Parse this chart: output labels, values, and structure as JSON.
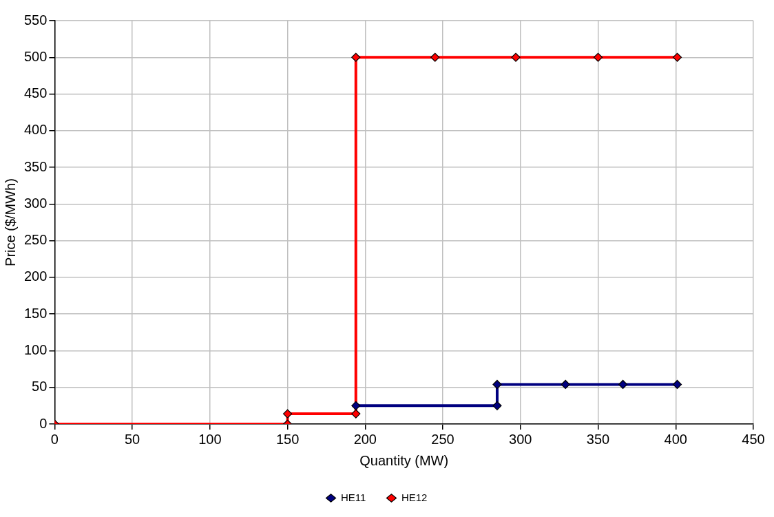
{
  "chart_data": {
    "type": "line",
    "xlabel": "Quantity (MW)",
    "ylabel": "Price ($/MWh)",
    "xlim": [
      0,
      450
    ],
    "xticks": [
      0,
      50,
      100,
      150,
      200,
      250,
      300,
      350,
      400,
      450
    ],
    "ylim": [
      0,
      550
    ],
    "yticks": [
      0,
      50,
      100,
      150,
      200,
      250,
      300,
      350,
      400,
      450,
      500,
      550
    ],
    "grid": true,
    "legend": "bottom",
    "marker": "diamond",
    "line_style": "solid",
    "series": [
      {
        "name": "HE11",
        "color": "#000080",
        "x": [
          194,
          285,
          285,
          329,
          366,
          401
        ],
        "values": [
          25,
          25,
          54,
          54,
          54,
          54
        ]
      },
      {
        "name": "HE12",
        "color": "#ff0000",
        "x": [
          0,
          150,
          150,
          194,
          194,
          245,
          297,
          350,
          401
        ],
        "values": [
          0,
          0,
          14,
          14,
          500,
          500,
          500,
          500,
          500
        ]
      }
    ]
  }
}
